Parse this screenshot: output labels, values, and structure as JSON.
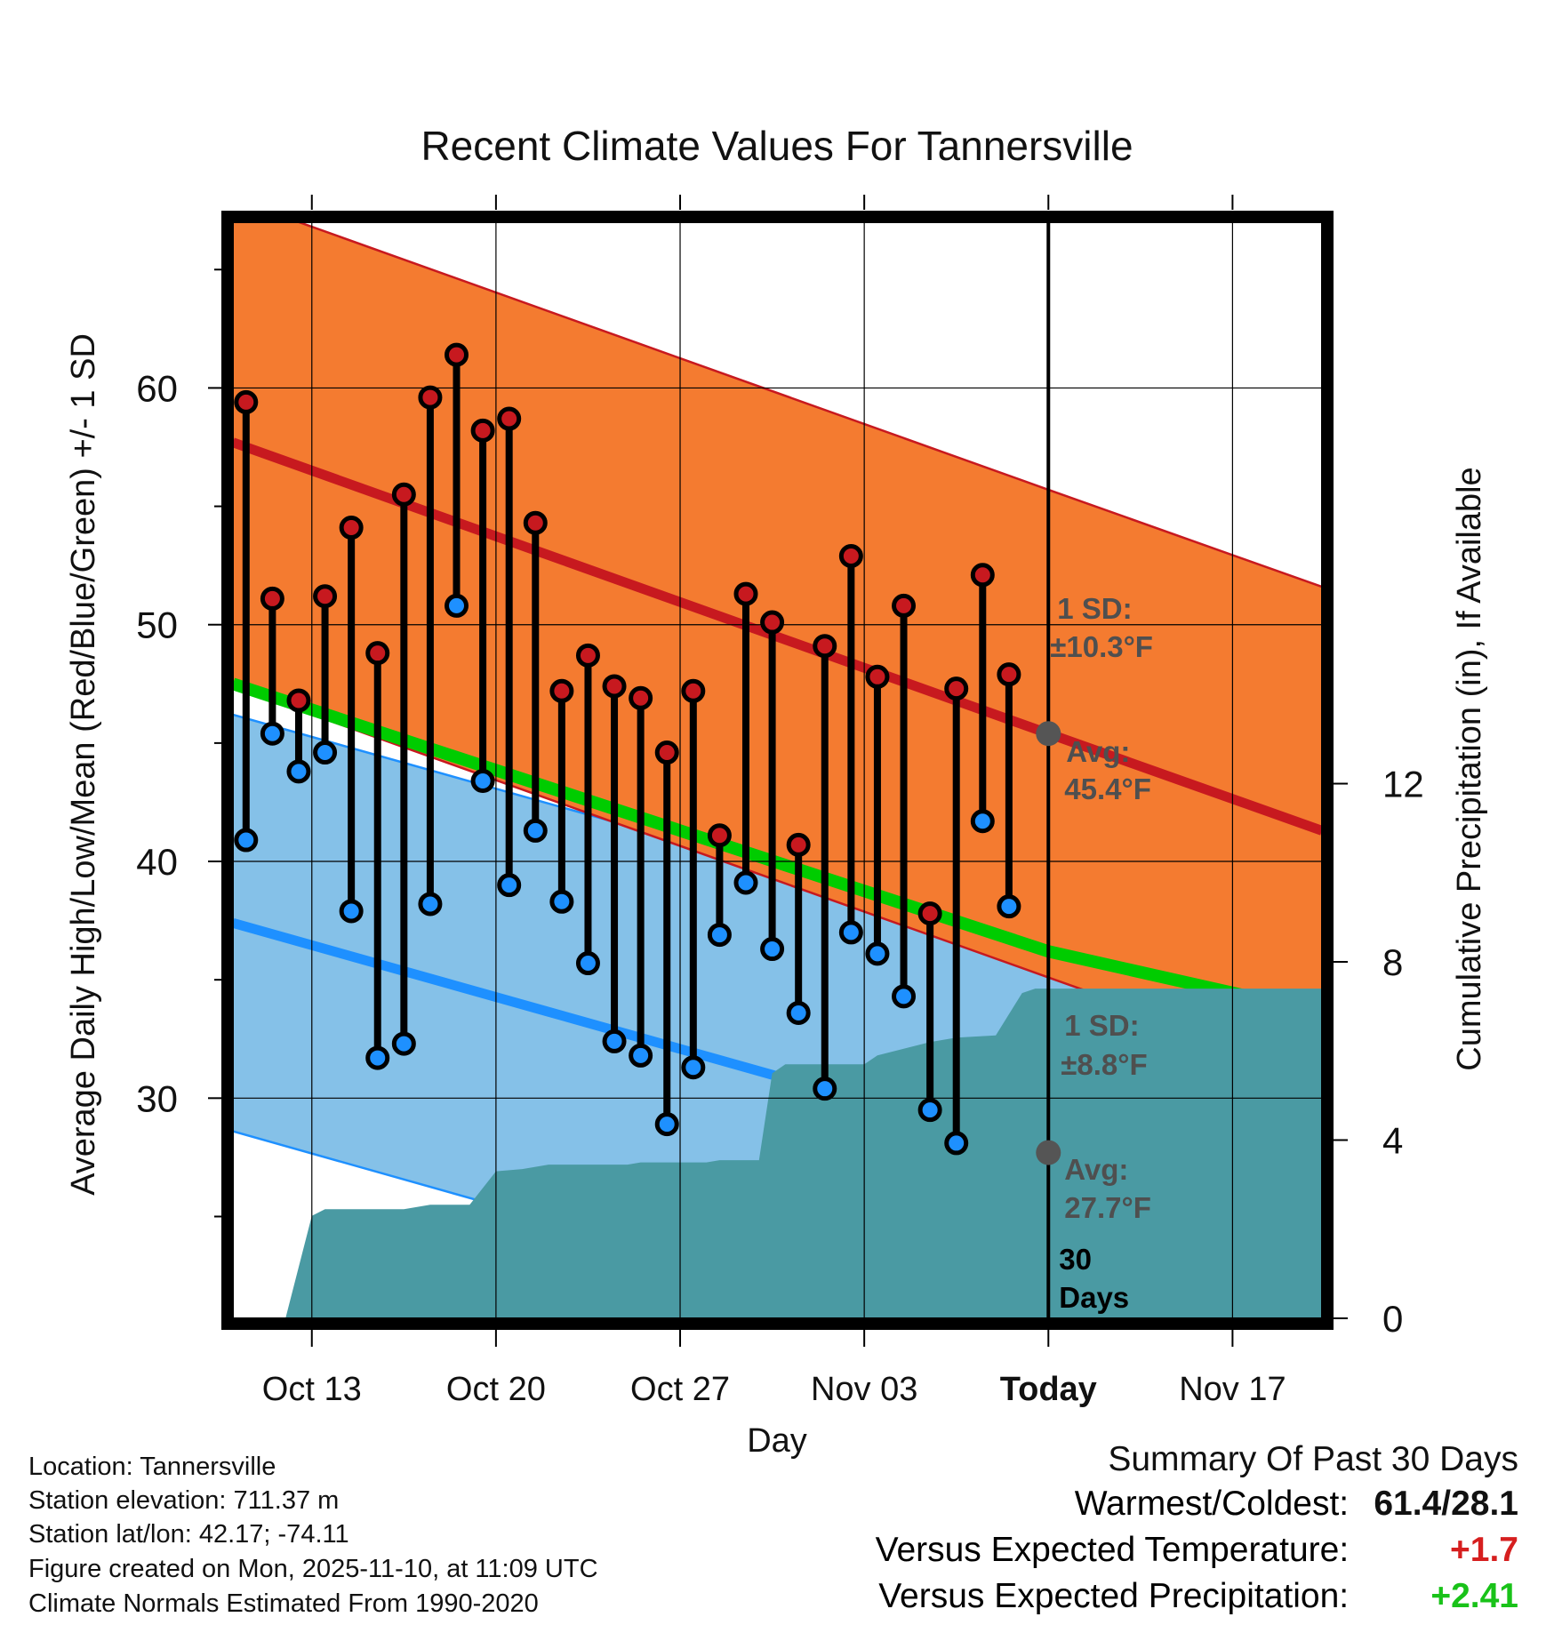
{
  "chart_data": {
    "type": "line",
    "title": "Recent Climate Values For Tannersville",
    "xlabel": "Day",
    "ylabel": "Average Daily High/Low/Mean (Red/Blue/Green) +/- 1 SD",
    "y2label": "Cumulative Precipitation (in), If Available",
    "ylim": [
      20.7,
      67
    ],
    "y2lim": [
      0,
      24.6
    ],
    "xlim": [
      -0.5,
      40.9
    ],
    "grid": true,
    "x_ticks": [
      {
        "day": 2.5,
        "label": "Oct 13"
      },
      {
        "day": 9.5,
        "label": "Oct 20"
      },
      {
        "day": 16.5,
        "label": "Oct 27"
      },
      {
        "day": 23.5,
        "label": "Nov 03"
      },
      {
        "day": 30.5,
        "label": "Today"
      },
      {
        "day": 37.5,
        "label": "Nov 17"
      }
    ],
    "y_ticks": [
      30,
      40,
      50,
      60
    ],
    "y2_ticks": [
      0,
      4,
      8,
      12
    ],
    "normals": {
      "high_avg": {
        "start": 57.7,
        "today": 45.4,
        "end": 41.3
      },
      "high_sd": 10.3,
      "low_avg": {
        "start": 37.4,
        "today": 27.7,
        "end": 25.7
      },
      "low_sd": 8.8,
      "mean_avg": {
        "start": 47.5,
        "today": 36.2,
        "end": 33.6
      }
    },
    "series": [
      {
        "name": "Daily High",
        "color": "#c7191f",
        "values": [
          59.4,
          51.1,
          46.8,
          51.2,
          54.1,
          48.8,
          55.5,
          59.6,
          61.4,
          58.2,
          58.7,
          54.3,
          47.2,
          48.7,
          47.4,
          46.9,
          44.6,
          47.2,
          41.1,
          51.3,
          50.1,
          40.7,
          49.1,
          52.9,
          47.8,
          50.8,
          37.8,
          47.3,
          52.1,
          47.9
        ]
      },
      {
        "name": "Daily Low",
        "color": "#1e90ff",
        "values": [
          40.9,
          45.4,
          43.8,
          44.6,
          37.9,
          31.7,
          32.3,
          38.2,
          50.8,
          43.4,
          39.0,
          41.3,
          38.3,
          35.7,
          32.4,
          31.8,
          28.9,
          31.3,
          36.9,
          39.1,
          36.3,
          33.6,
          30.4,
          37.0,
          36.1,
          34.3,
          29.5,
          28.1,
          41.7,
          38.1
        ]
      },
      {
        "name": "Cumulative Precipitation",
        "color": "#4a9aa3",
        "steps": [
          [
            1.5,
            0
          ],
          [
            2.5,
            2.3
          ],
          [
            3,
            2.45
          ],
          [
            6,
            2.45
          ],
          [
            7,
            2.55
          ],
          [
            8.5,
            2.55
          ],
          [
            9.5,
            3.3
          ],
          [
            10.5,
            3.35
          ],
          [
            11.5,
            3.45
          ],
          [
            14.5,
            3.45
          ],
          [
            15,
            3.5
          ],
          [
            17.5,
            3.5
          ],
          [
            18,
            3.55
          ],
          [
            19.5,
            3.55
          ],
          [
            20,
            5.5
          ],
          [
            20.5,
            5.7
          ],
          [
            21,
            5.7
          ],
          [
            23.5,
            5.7
          ],
          [
            24,
            5.9
          ],
          [
            26,
            6.2
          ],
          [
            27,
            6.3
          ],
          [
            28.5,
            6.35
          ],
          [
            29.5,
            7.3
          ],
          [
            30,
            7.4
          ],
          [
            40.9,
            7.4
          ]
        ]
      }
    ],
    "annotations": {
      "high_sd_label": [
        "1 SD:",
        "±10.3°F"
      ],
      "high_avg_label": [
        "Avg:",
        "45.4°F"
      ],
      "low_sd_label": [
        "1 SD:",
        "±8.8°F"
      ],
      "low_avg_label": [
        "Avg:",
        "27.7°F"
      ],
      "period_label": [
        "30",
        "Days"
      ]
    }
  },
  "info": {
    "location": "Location: Tannersville",
    "elevation": "Station elevation: 711.37 m",
    "latlon": "Station lat/lon: 42.17; -74.11",
    "created": "Figure created on Mon, 2025-11-10, at 11:09 UTC",
    "normals": "Climate Normals Estimated From 1990-2020"
  },
  "summary": {
    "title": "Summary Of Past 30 Days",
    "warmest_label": "Warmest/Coldest:",
    "warmest_value": "61.4/28.1",
    "temp_label": "Versus Expected Temperature:",
    "temp_value": "+1.7",
    "temp_color": "#d61f1f",
    "precip_label": "Versus Expected Precipitation:",
    "precip_value": "+2.41",
    "precip_color": "#19c219"
  },
  "colors": {
    "high_band": "#f47b30",
    "high_line": "#c7191f",
    "low_band": "#85c1e8",
    "low_line": "#1e90ff",
    "mean_line": "#00cc00",
    "precip": "#4a9aa3",
    "marker_dot": "#555555"
  }
}
